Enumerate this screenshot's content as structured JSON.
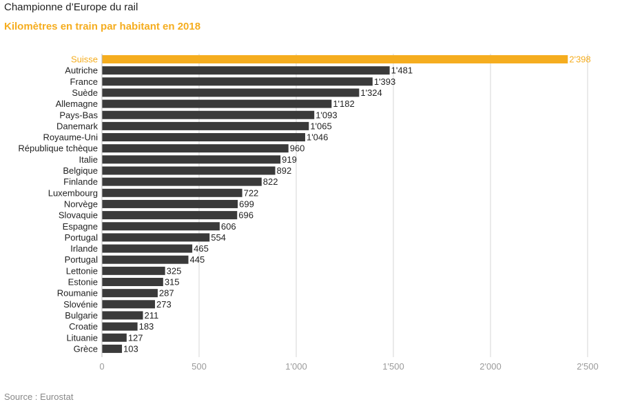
{
  "header": {
    "title": "Championne d’Europe du rail",
    "subtitle": "Kilomètres en train par habitant en 2018"
  },
  "footer": {
    "source": "Source : Eurostat"
  },
  "colors": {
    "highlight": "#f5ad1f",
    "bar": "#3a3a3a",
    "grid": "#d4d4d4",
    "tick": "#9a9a9a"
  },
  "chart_data": {
    "type": "bar",
    "orientation": "horizontal",
    "title": "Kilomètres en train par habitant en 2018",
    "xlabel": "",
    "ylabel": "",
    "xlim": [
      0,
      2500
    ],
    "ticks": [
      0,
      500,
      1000,
      1500,
      2000,
      2500
    ],
    "tick_labels": [
      "0",
      "500",
      "1'000",
      "1'500",
      "2'000",
      "2'500"
    ],
    "grid": true,
    "highlight": "Suisse",
    "categories": [
      "Suisse",
      "Autriche",
      "France",
      "Suède",
      "Allemagne",
      "Pays-Bas",
      "Danemark",
      "Royaume-Uni",
      "République tchèque",
      "Italie",
      "Belgique",
      "Finlande",
      "Luxembourg",
      "Norvège",
      "Slovaquie",
      "Espagne",
      "Portugal",
      "Irlande",
      "Portugal",
      "Lettonie",
      "Estonie",
      "Roumanie",
      "Slovénie",
      "Bulgarie",
      "Croatie",
      "Lituanie",
      "Grèce"
    ],
    "values": [
      2398,
      1481,
      1393,
      1324,
      1182,
      1093,
      1065,
      1046,
      960,
      919,
      892,
      822,
      722,
      699,
      696,
      606,
      554,
      465,
      445,
      325,
      315,
      287,
      273,
      211,
      183,
      127,
      103
    ],
    "value_labels": [
      "2'398",
      "1'481",
      "1'393",
      "1'324",
      "1'182",
      "1'093",
      "1'065",
      "1'046",
      "960",
      "919",
      "892",
      "822",
      "722",
      "699",
      "696",
      "606",
      "554",
      "465",
      "445",
      "325",
      "315",
      "287",
      "273",
      "211",
      "183",
      "127",
      "103"
    ]
  }
}
